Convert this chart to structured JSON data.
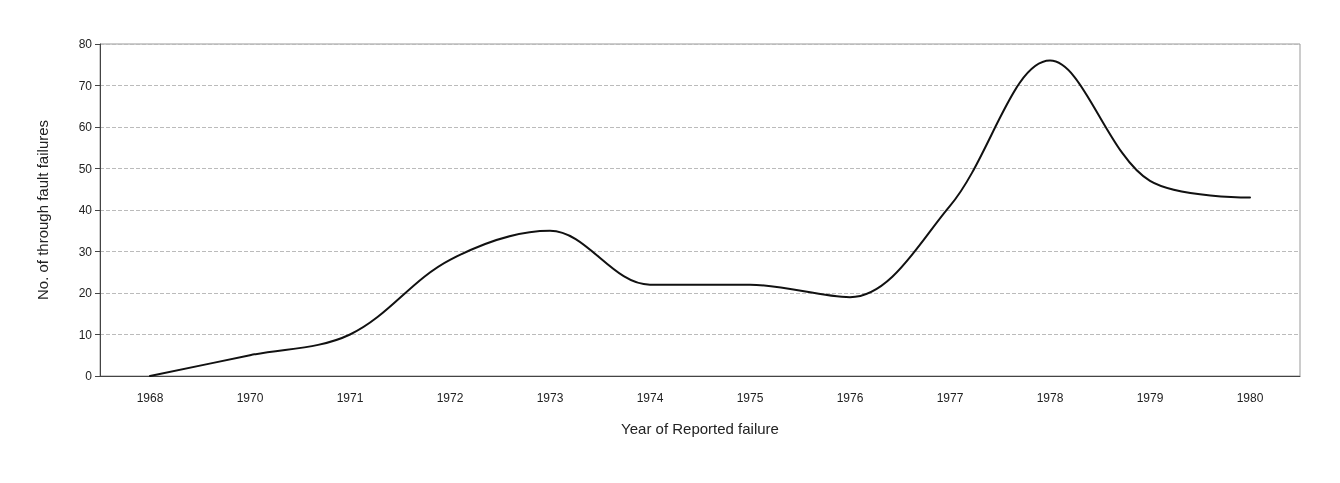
{
  "chart_data": {
    "type": "line",
    "xlabel": "Year of Reported failure",
    "ylabel": "No. of through fault failures",
    "categories": [
      "1968",
      "1970",
      "1971",
      "1972",
      "1973",
      "1974",
      "1975",
      "1976",
      "1977",
      "1978",
      "1979",
      "1980"
    ],
    "series": [
      {
        "color": "#111111",
        "values": [
          0,
          5,
          10,
          28,
          35,
          22,
          22,
          19,
          41,
          76,
          47,
          43
        ]
      }
    ],
    "ylim": [
      0,
      80
    ],
    "yticks": [
      0,
      10,
      20,
      30,
      40,
      50,
      60,
      70,
      80
    ],
    "grid": "y",
    "marker": "none",
    "line_style": "solid"
  }
}
